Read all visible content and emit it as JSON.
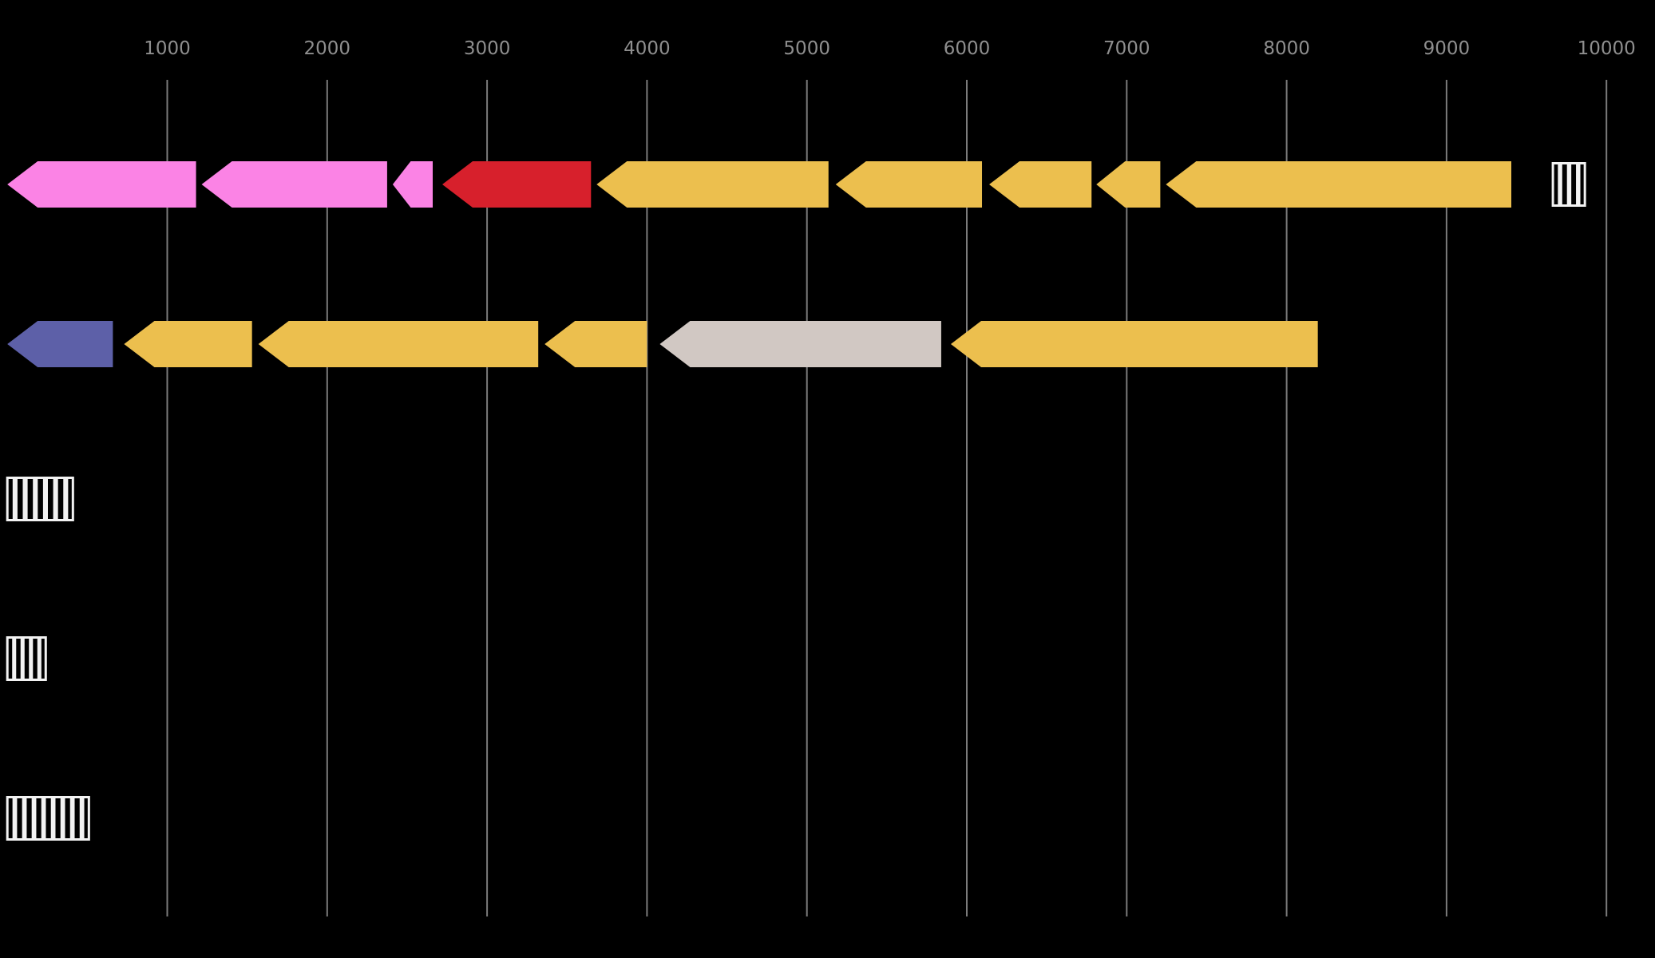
{
  "chart_data": {
    "type": "gene-arrow-synteny-plot",
    "title": "",
    "background_color": "#000000",
    "axis": {
      "unit": "bp",
      "domain": [
        0,
        10300
      ],
      "ticks": [
        1000,
        2000,
        3000,
        4000,
        5000,
        6000,
        7000,
        8000,
        9000,
        10000
      ],
      "tick_labels": [
        "1000",
        "2000",
        "3000",
        "4000",
        "5000",
        "6000",
        "7000",
        "8000",
        "9000",
        "10000"
      ],
      "gridlines": true,
      "grid_color": "#7b7b7b",
      "tick_label_color": "#8e8e8e"
    },
    "colors": {
      "pink": "#FB83E5",
      "red": "#D7202C",
      "gold": "#ECBF4E",
      "purple": "#5D60A8",
      "gray": "#D1C8C3",
      "hatch_white": "#F2F2F2",
      "hatch_black": "#000000"
    },
    "tracks": [
      {
        "name": "track-1",
        "features": [
          {
            "kind": "gene",
            "start": 0,
            "end": 1180,
            "strand": "-",
            "color": "pink"
          },
          {
            "kind": "gene",
            "start": 1215,
            "end": 2375,
            "strand": "-",
            "color": "pink"
          },
          {
            "kind": "gene",
            "start": 2410,
            "end": 2660,
            "strand": "-",
            "color": "pink"
          },
          {
            "kind": "gene",
            "start": 2720,
            "end": 3650,
            "strand": "-",
            "color": "red"
          },
          {
            "kind": "gene",
            "start": 3685,
            "end": 5135,
            "strand": "-",
            "color": "gold"
          },
          {
            "kind": "gene",
            "start": 5180,
            "end": 6095,
            "strand": "-",
            "color": "gold"
          },
          {
            "kind": "gene",
            "start": 6140,
            "end": 6780,
            "strand": "-",
            "color": "gold"
          },
          {
            "kind": "gene",
            "start": 6810,
            "end": 7210,
            "strand": "-",
            "color": "gold"
          },
          {
            "kind": "gene",
            "start": 7245,
            "end": 9405,
            "strand": "-",
            "color": "gold"
          },
          {
            "kind": "hatched-box",
            "start": 9665,
            "end": 9865,
            "stripes": 3
          }
        ]
      },
      {
        "name": "track-2",
        "features": [
          {
            "kind": "gene",
            "start": 0,
            "end": 660,
            "strand": "-",
            "color": "purple"
          },
          {
            "kind": "gene",
            "start": 730,
            "end": 1530,
            "strand": "-",
            "color": "gold"
          },
          {
            "kind": "gene",
            "start": 1570,
            "end": 3320,
            "strand": "-",
            "color": "gold"
          },
          {
            "kind": "gene",
            "start": 3360,
            "end": 4000,
            "strand": "-",
            "color": "gold"
          },
          {
            "kind": "gene",
            "start": 4080,
            "end": 5840,
            "strand": "-",
            "color": "gray"
          },
          {
            "kind": "gene",
            "start": 5900,
            "end": 8195,
            "strand": "-",
            "color": "gold"
          }
        ]
      },
      {
        "name": "track-3",
        "features": [
          {
            "kind": "hatched-box",
            "start": 0,
            "end": 410,
            "stripes": 6
          }
        ]
      },
      {
        "name": "track-4",
        "features": [
          {
            "kind": "hatched-box",
            "start": 0,
            "end": 240,
            "stripes": 4
          }
        ]
      },
      {
        "name": "track-5",
        "features": [
          {
            "kind": "hatched-box",
            "start": 0,
            "end": 510,
            "stripes": 8
          }
        ]
      }
    ]
  }
}
